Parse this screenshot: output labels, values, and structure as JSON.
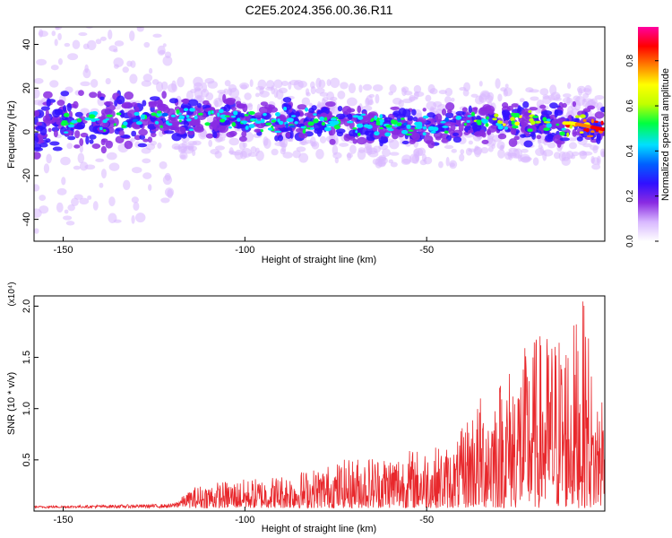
{
  "title": "C2E5.2024.356.00.36.R11",
  "chart_data": [
    {
      "type": "heatmap",
      "xlabel": "Height of straight line (km)",
      "ylabel": "Frequency (Hz)",
      "xlim": [
        -158,
        -1
      ],
      "ylim": [
        -50,
        48
      ],
      "xticks": [
        -150,
        -100,
        -50
      ],
      "xtick_labels": [
        "-150",
        "-100",
        "-50"
      ],
      "yticks": [
        -40,
        -20,
        0,
        20,
        40
      ],
      "ytick_labels": [
        "-40",
        "-20",
        "0",
        "20",
        "40"
      ],
      "colorbar": {
        "label": "Normalized spectral amplitude",
        "range": [
          0,
          0.95
        ],
        "ticks": [
          0,
          0.2,
          0.4,
          0.6,
          0.8
        ],
        "tick_labels": [
          "0.0",
          "0.2",
          "0.4",
          "0.6",
          "0.8"
        ],
        "colors": [
          "#ffffff",
          "#d8b8ff",
          "#8a2be2",
          "#3010ff",
          "#0060ff",
          "#00e0ff",
          "#00ff40",
          "#c0ff00",
          "#ffff00",
          "#ff8000",
          "#ff0000",
          "#ff00a0"
        ]
      },
      "ridge": [
        {
          "x": -155,
          "f": 5
        },
        {
          "x": -120,
          "f": 6
        },
        {
          "x": -100,
          "f": 6
        },
        {
          "x": -80,
          "f": 5
        },
        {
          "x": -60,
          "f": 3
        },
        {
          "x": -45,
          "f": 2
        },
        {
          "x": -38,
          "f": 5
        },
        {
          "x": -20,
          "f": 4
        },
        {
          "x": -10,
          "f": 4
        },
        {
          "x": -1,
          "f": 1
        }
      ],
      "grid": false
    },
    {
      "type": "line",
      "xlabel": "Height of straight line (km)",
      "ylabel": "SNR (10 * v/v)",
      "y_multiplier": "(x10⁴)",
      "xlim": [
        -158,
        -1
      ],
      "ylim": [
        0,
        2.1
      ],
      "xticks": [
        -150,
        -100,
        -50
      ],
      "xtick_labels": [
        "-150",
        "-100",
        "-50"
      ],
      "yticks": [
        0.5,
        1.0,
        1.5,
        2.0
      ],
      "ytick_labels": [
        "0.5",
        "1.0",
        "1.5",
        "2.0"
      ],
      "series": [
        {
          "color": "#e8282c",
          "envelope": [
            {
              "x": -158,
              "y": 0.05
            },
            {
              "x": -120,
              "y": 0.07
            },
            {
              "x": -115,
              "y": 0.2
            },
            {
              "x": -110,
              "y": 0.25
            },
            {
              "x": -95,
              "y": 0.3
            },
            {
              "x": -80,
              "y": 0.4
            },
            {
              "x": -70,
              "y": 0.5
            },
            {
              "x": -60,
              "y": 0.55
            },
            {
              "x": -50,
              "y": 0.6
            },
            {
              "x": -42,
              "y": 0.62
            },
            {
              "x": -38,
              "y": 1.0
            },
            {
              "x": -30,
              "y": 1.3
            },
            {
              "x": -20,
              "y": 1.7
            },
            {
              "x": -10,
              "y": 1.8
            },
            {
              "x": -6,
              "y": 2.1
            },
            {
              "x": -4,
              "y": 1.0
            },
            {
              "x": -2,
              "y": 1.35
            },
            {
              "x": -1,
              "y": 1.1
            }
          ]
        }
      ],
      "grid": false
    }
  ]
}
